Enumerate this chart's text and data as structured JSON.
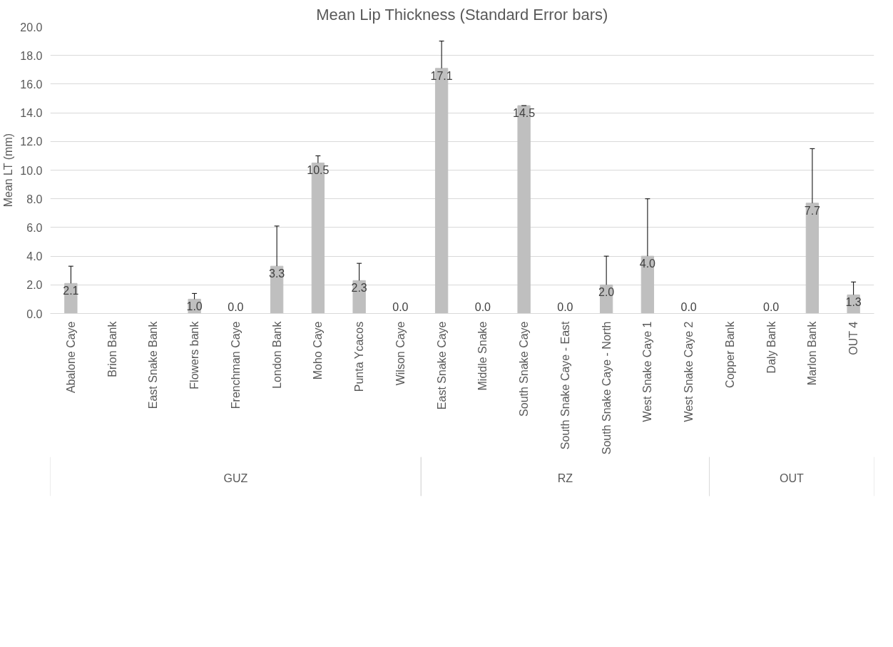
{
  "chart_data": {
    "type": "bar",
    "title": "Mean Lip Thickness (Standard Error bars)",
    "ylabel": "Mean LT (mm)",
    "categories": [
      "Abalone Caye",
      "Brion Bank",
      "East Snake Bank",
      "Flowers bank",
      "Frenchman Caye",
      "London Bank",
      "Moho Caye",
      "Punta Ycacos",
      "Wilson Caye",
      "East Snake Caye",
      "Middle Snake",
      "South Snake Caye",
      "South Snake Caye - East",
      "South Snake Caye - North",
      "West Snake Caye 1",
      "West Snake Caye 2",
      "Copper Bank",
      "Daly Bank",
      "Marlon Bank",
      "OUT 4"
    ],
    "series": [
      {
        "color": "#bfbfbf",
        "x": [
          "Abalone Caye",
          "Brion Bank",
          "East Snake Bank",
          "Flowers bank",
          "Frenchman Caye",
          "London Bank",
          "Moho Caye",
          "Punta Ycacos",
          "Wilson Caye"
        ],
        "values": [
          2.1,
          null,
          null,
          1.0,
          0.0,
          3.3,
          10.5,
          2.3,
          0.0
        ],
        "value_labels": [
          "2.1",
          null,
          null,
          "1.0",
          "0.0",
          "3.3",
          "10.5",
          "2.3",
          "0.0"
        ],
        "errors": [
          [
            2.1,
            3.3
          ],
          null,
          null,
          [
            1.0,
            1.4
          ],
          null,
          [
            3.3,
            6.1
          ],
          [
            10.5,
            11.0
          ],
          [
            2.3,
            3.5
          ],
          null
        ]
      },
      {
        "color": "#bfbfbf",
        "x": [
          "East Snake Caye",
          "Middle Snake",
          "South Snake Caye",
          "South Snake Caye - East",
          "South Snake Caye - North",
          "West Snake Caye 1",
          "West Snake Caye 2"
        ],
        "values": [
          17.1,
          0.0,
          14.5,
          0.0,
          2.0,
          4.0,
          0.0
        ],
        "value_labels": [
          "17.1",
          "0.0",
          "14.5",
          "0.0",
          "2.0",
          "4.0",
          "0.0"
        ],
        "errors": [
          [
            17.1,
            19.0
          ],
          null,
          [
            14.5,
            14.5
          ],
          null,
          [
            2.0,
            4.0
          ],
          [
            4.0,
            8.0
          ],
          null
        ]
      },
      {
        "color": "#bfbfbf",
        "x": [
          "Copper Bank",
          "Daly Bank",
          "Marlon Bank",
          "OUT 4"
        ],
        "values": [
          null,
          0.0,
          7.7,
          1.3
        ],
        "value_labels": [
          null,
          "0.0",
          "7.7",
          "1.3"
        ],
        "errors": [
          null,
          null,
          [
            7.7,
            11.5
          ],
          [
            1.3,
            2.2
          ]
        ]
      }
    ],
    "ylim": [
      0,
      20
    ],
    "yticks": [
      {
        "value": 0,
        "label": "0.0"
      },
      {
        "value": 2,
        "label": "2.0"
      },
      {
        "value": 4,
        "label": "4.0"
      },
      {
        "value": 6,
        "label": "6.0"
      },
      {
        "value": 8,
        "label": "8.0"
      },
      {
        "value": 10,
        "label": "10.0"
      },
      {
        "value": 12,
        "label": "12.0"
      },
      {
        "value": 14,
        "label": "14.0"
      },
      {
        "value": 16,
        "label": "16.0"
      },
      {
        "value": 18,
        "label": "18.0"
      },
      {
        "value": 20,
        "label": "20.0"
      }
    ],
    "grid": "y",
    "annotations": [
      "GUZ",
      "RZ",
      "OUT"
    ]
  }
}
